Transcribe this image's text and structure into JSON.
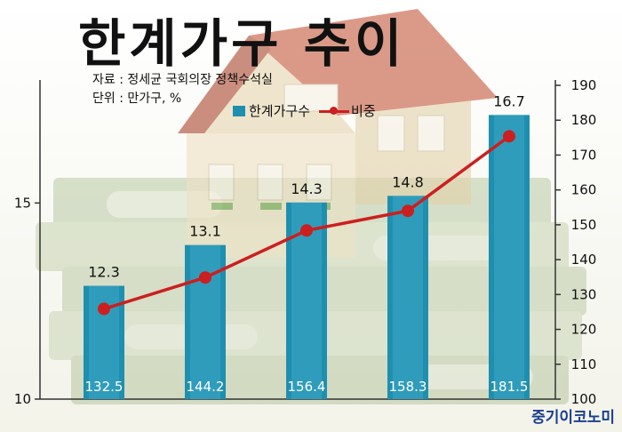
{
  "header": {
    "title": "한계가구 추이",
    "source_line": "자료 : 정세균 국회의장 정책수석실",
    "unit_line": "단위 : 만가구, %"
  },
  "legend": {
    "bar_label": "한계가구수",
    "line_label": "비중"
  },
  "brand": "중기이코노미",
  "colors": {
    "bar": "#1f8fb0",
    "bar_light": "#4fb4d0",
    "line": "#cc1f1f"
  },
  "chart_data": {
    "type": "bar",
    "categories": [
      "",
      "",
      "",
      "",
      ""
    ],
    "series": [
      {
        "name": "한계가구수",
        "type": "bar",
        "axis": "right",
        "values": [
          132.5,
          144.2,
          156.4,
          158.3,
          181.5
        ]
      },
      {
        "name": "비중",
        "type": "line",
        "axis": "left",
        "values": [
          12.3,
          13.1,
          14.3,
          14.8,
          16.7
        ]
      }
    ],
    "y_left": {
      "ticks": [
        10,
        15
      ],
      "range": [
        10,
        18
      ]
    },
    "y_right": {
      "ticks": [
        100,
        110,
        120,
        130,
        140,
        150,
        160,
        170,
        180,
        190
      ],
      "range": [
        100,
        190
      ]
    },
    "bar_value_labels": [
      "132.5",
      "144.2",
      "156.4",
      "158.3",
      "181.5"
    ],
    "line_value_labels": [
      "12.3",
      "13.1",
      "14.3",
      "14.8",
      "16.7"
    ],
    "title": "한계가구 추이",
    "legend_position": "top"
  }
}
